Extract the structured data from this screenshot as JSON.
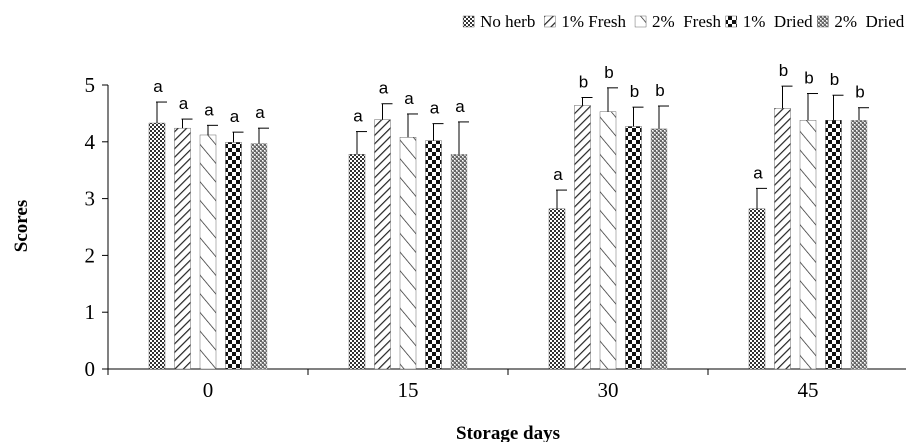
{
  "chart_data": {
    "type": "bar",
    "title": "",
    "xlabel": "Storage days",
    "ylabel": "Scores",
    "categories": [
      "0",
      "15",
      "30",
      "45"
    ],
    "ylim": [
      0,
      5
    ],
    "yticks": [
      "0",
      "1",
      "2",
      "3",
      "4",
      "5"
    ],
    "grid": false,
    "legend_position": "top-right",
    "series": [
      {
        "name": "No herb",
        "pattern": "checker",
        "values": [
          4.33,
          3.78,
          2.82,
          2.82
        ],
        "errors": [
          0.37,
          0.4,
          0.33,
          0.36
        ],
        "labels": [
          "a",
          "a",
          "a",
          "a"
        ]
      },
      {
        "name": "1% Fresh",
        "pattern": "diagonal",
        "values": [
          4.24,
          4.39,
          4.64,
          4.59
        ],
        "errors": [
          0.16,
          0.28,
          0.14,
          0.39
        ],
        "labels": [
          "a",
          "a",
          "b",
          "b"
        ]
      },
      {
        "name": "2%  Fresh",
        "pattern": "wide-diagonal",
        "values": [
          4.12,
          4.08,
          4.53,
          4.38
        ],
        "errors": [
          0.17,
          0.41,
          0.42,
          0.47
        ],
        "labels": [
          "a",
          "a",
          "b",
          "b"
        ]
      },
      {
        "name": "1%  Dried",
        "pattern": "dots",
        "values": [
          3.99,
          4.02,
          4.27,
          4.38
        ],
        "errors": [
          0.18,
          0.3,
          0.34,
          0.44
        ],
        "labels": [
          "a",
          "a",
          "b",
          "b"
        ]
      },
      {
        "name": "2%  Dried",
        "pattern": "crosshatch",
        "values": [
          3.97,
          3.78,
          4.23,
          4.38
        ],
        "errors": [
          0.27,
          0.57,
          0.4,
          0.22
        ],
        "labels": [
          "a",
          "a",
          "b",
          "b"
        ]
      }
    ]
  }
}
